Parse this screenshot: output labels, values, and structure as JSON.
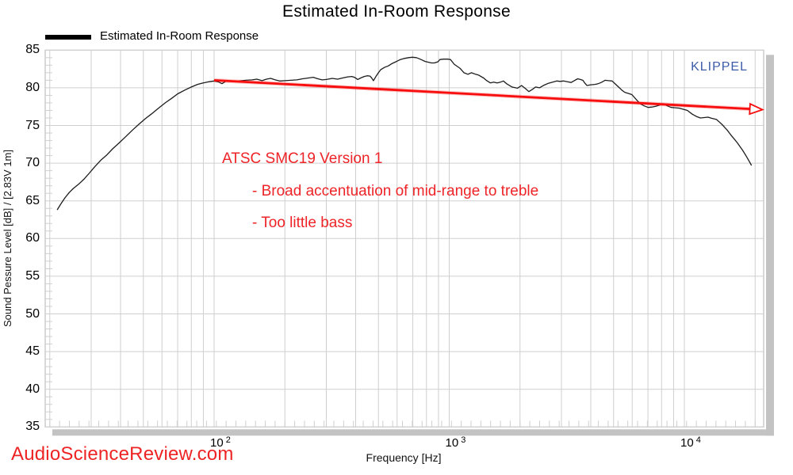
{
  "title": "Estimated In-Room Response",
  "legend": {
    "label": "Estimated In-Room Response",
    "swatch_color": "#000000"
  },
  "watermark": "KLIPPEL",
  "logo": "AudioScienceReview.com",
  "annotations": {
    "line1": "ATSC SMC19 Version 1",
    "line2": "- Broad accentuation of mid-range to treble",
    "line3": "- Too little bass"
  },
  "colors": {
    "annotation_red": "#ee2428",
    "arrow_red": "#f70d0d",
    "klippel_blue": "#3d5ca8",
    "logo_red": "#ee2424",
    "grid": "#cfcfcf",
    "frame": "#b3b3b3",
    "shadow": "#c3c3c3",
    "curve": "#1c1c1c",
    "background": "#ffffff"
  },
  "chart_data": {
    "type": "line",
    "x_scale": "log",
    "grid": true,
    "xlabel": "Frequency [Hz]",
    "ylabel": "Sound Pessure Level [dB]  /  [2.83V 1m]",
    "xlim": [
      18.8,
      21900
    ],
    "ylim": [
      35,
      85
    ],
    "y_ticks": [
      85,
      80,
      75,
      70,
      65,
      60,
      55,
      50,
      45,
      40,
      35
    ],
    "x_ticks": [
      {
        "value": 100,
        "mantissa": "10",
        "exponent": "2"
      },
      {
        "value": 1000,
        "mantissa": "10",
        "exponent": "3"
      },
      {
        "value": 10000,
        "mantissa": "10",
        "exponent": "4"
      }
    ],
    "legend_position": "top-left",
    "trend_arrow": {
      "from": [
        100,
        81.0
      ],
      "to": [
        21500,
        77.1
      ]
    },
    "series": [
      {
        "name": "Estimated In-Room Response",
        "points": [
          [
            21.5,
            63.8
          ],
          [
            22.3,
            64.6
          ],
          [
            23.2,
            65.4
          ],
          [
            24.2,
            66.1
          ],
          [
            25.2,
            66.65
          ],
          [
            26.5,
            67.2
          ],
          [
            28,
            67.9
          ],
          [
            29.5,
            68.7
          ],
          [
            31,
            69.5
          ],
          [
            33,
            70.4
          ],
          [
            35,
            71.1
          ],
          [
            37,
            71.9
          ],
          [
            39.5,
            72.7
          ],
          [
            42,
            73.5
          ],
          [
            45,
            74.4
          ],
          [
            48,
            75.2
          ],
          [
            51,
            75.9
          ],
          [
            54,
            76.5
          ],
          [
            58,
            77.3
          ],
          [
            62,
            78.0
          ],
          [
            66,
            78.6
          ],
          [
            70,
            79.2
          ],
          [
            75,
            79.7
          ],
          [
            80,
            80.1
          ],
          [
            85,
            80.45
          ],
          [
            90,
            80.65
          ],
          [
            95,
            80.8
          ],
          [
            100,
            80.9
          ],
          [
            104,
            80.8
          ],
          [
            108,
            80.55
          ],
          [
            112,
            80.85
          ],
          [
            120,
            80.85
          ],
          [
            128,
            80.9
          ],
          [
            136,
            81.0
          ],
          [
            145,
            81.05
          ],
          [
            152,
            81.15
          ],
          [
            160,
            80.95
          ],
          [
            167,
            81.15
          ],
          [
            174,
            81.25
          ],
          [
            182,
            81.05
          ],
          [
            190,
            80.9
          ],
          [
            200,
            80.95
          ],
          [
            212,
            81.0
          ],
          [
            225,
            81.05
          ],
          [
            238,
            81.2
          ],
          [
            252,
            81.3
          ],
          [
            264,
            81.4
          ],
          [
            276,
            81.2
          ],
          [
            288,
            81.05
          ],
          [
            300,
            81.1
          ],
          [
            318,
            81.25
          ],
          [
            335,
            81.15
          ],
          [
            352,
            81.3
          ],
          [
            370,
            81.45
          ],
          [
            385,
            81.5
          ],
          [
            395,
            81.4
          ],
          [
            408,
            81.1
          ],
          [
            420,
            81.3
          ],
          [
            435,
            81.5
          ],
          [
            448,
            81.6
          ],
          [
            460,
            81.55
          ],
          [
            468,
            81.3
          ],
          [
            476,
            80.95
          ],
          [
            490,
            81.6
          ],
          [
            500,
            82.0
          ],
          [
            511,
            82.4
          ],
          [
            530,
            82.7
          ],
          [
            550,
            82.9
          ],
          [
            570,
            83.2
          ],
          [
            597,
            83.5
          ],
          [
            620,
            83.75
          ],
          [
            645,
            83.9
          ],
          [
            672,
            84.0
          ],
          [
            697,
            84.05
          ],
          [
            725,
            84.0
          ],
          [
            745,
            83.85
          ],
          [
            765,
            83.7
          ],
          [
            790,
            83.5
          ],
          [
            813,
            83.4
          ],
          [
            840,
            83.3
          ],
          [
            865,
            83.3
          ],
          [
            895,
            83.45
          ],
          [
            913,
            83.75
          ],
          [
            945,
            83.8
          ],
          [
            985,
            83.8
          ],
          [
            1012,
            83.75
          ],
          [
            1052,
            83.1
          ],
          [
            1110,
            82.6
          ],
          [
            1155,
            82.0
          ],
          [
            1200,
            81.8
          ],
          [
            1244,
            82.0
          ],
          [
            1294,
            81.8
          ],
          [
            1330,
            81.7
          ],
          [
            1400,
            81.3
          ],
          [
            1437,
            81.0
          ],
          [
            1495,
            80.65
          ],
          [
            1545,
            80.75
          ],
          [
            1600,
            80.65
          ],
          [
            1650,
            80.75
          ],
          [
            1700,
            80.9
          ],
          [
            1760,
            80.5
          ],
          [
            1850,
            80.1
          ],
          [
            1950,
            79.95
          ],
          [
            2030,
            80.3
          ],
          [
            2110,
            79.9
          ],
          [
            2180,
            79.5
          ],
          [
            2260,
            79.8
          ],
          [
            2330,
            80.1
          ],
          [
            2420,
            80.0
          ],
          [
            2530,
            80.35
          ],
          [
            2640,
            80.6
          ],
          [
            2750,
            80.75
          ],
          [
            2870,
            80.9
          ],
          [
            2960,
            80.85
          ],
          [
            3060,
            80.9
          ],
          [
            3180,
            80.8
          ],
          [
            3300,
            80.7
          ],
          [
            3400,
            80.95
          ],
          [
            3520,
            81.2
          ],
          [
            3610,
            81.1
          ],
          [
            3700,
            81.0
          ],
          [
            3780,
            80.6
          ],
          [
            3850,
            80.3
          ],
          [
            4000,
            80.4
          ],
          [
            4170,
            80.45
          ],
          [
            4300,
            80.55
          ],
          [
            4430,
            80.7
          ],
          [
            4600,
            81.0
          ],
          [
            4760,
            80.95
          ],
          [
            4930,
            80.9
          ],
          [
            5090,
            80.5
          ],
          [
            5250,
            80.1
          ],
          [
            5420,
            79.7
          ],
          [
            5580,
            79.4
          ],
          [
            5780,
            79.25
          ],
          [
            5980,
            79.1
          ],
          [
            6220,
            78.5
          ],
          [
            6480,
            77.9
          ],
          [
            6740,
            77.6
          ],
          [
            7010,
            77.4
          ],
          [
            7280,
            77.45
          ],
          [
            7560,
            77.55
          ],
          [
            7840,
            77.7
          ],
          [
            8130,
            77.9
          ],
          [
            8450,
            77.6
          ],
          [
            8790,
            77.4
          ],
          [
            9140,
            77.35
          ],
          [
            9500,
            77.3
          ],
          [
            9890,
            77.15
          ],
          [
            10300,
            77.0
          ],
          [
            10800,
            76.5
          ],
          [
            11250,
            76.2
          ],
          [
            11700,
            76.0
          ],
          [
            12150,
            76.05
          ],
          [
            12600,
            76.1
          ],
          [
            13100,
            75.95
          ],
          [
            13700,
            75.8
          ],
          [
            14100,
            75.45
          ],
          [
            14500,
            75.1
          ],
          [
            14850,
            74.75
          ],
          [
            15200,
            74.4
          ],
          [
            15550,
            74.0
          ],
          [
            15900,
            73.6
          ],
          [
            16350,
            73.15
          ],
          [
            16800,
            72.7
          ],
          [
            17250,
            72.2
          ],
          [
            17700,
            71.7
          ],
          [
            18150,
            71.15
          ],
          [
            18600,
            70.6
          ],
          [
            18950,
            70.15
          ],
          [
            19300,
            69.7
          ]
        ]
      }
    ]
  }
}
